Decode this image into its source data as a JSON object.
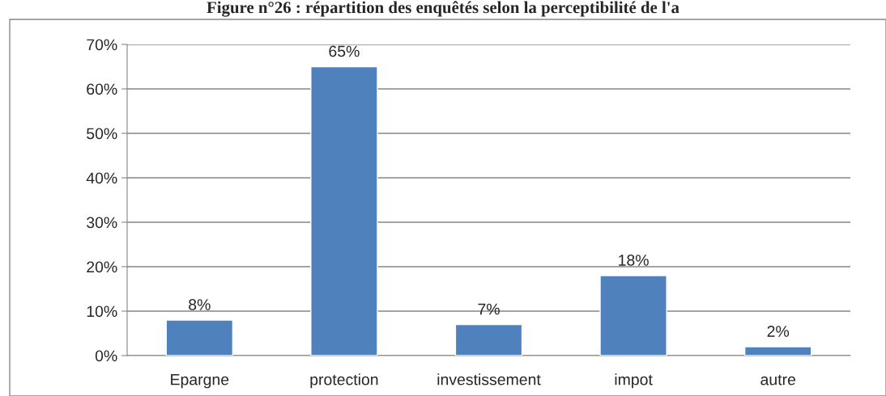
{
  "chart_data": {
    "type": "bar",
    "title": "Figure n°26 : répartition des enquêtés selon la perceptibilité de l'a",
    "categories": [
      "Epargne",
      "protection",
      "investissement",
      "impot",
      "autre"
    ],
    "values": [
      8,
      65,
      7,
      18,
      2
    ],
    "color": "#4f81bd",
    "value_labels": [
      "8%",
      "65%",
      "7%",
      "18%",
      "2%"
    ],
    "ylim": [
      0,
      70
    ],
    "yticks": [
      {
        "value": 0,
        "label": "0%"
      },
      {
        "value": 10,
        "label": "10%"
      },
      {
        "value": 20,
        "label": "20%"
      },
      {
        "value": 30,
        "label": "30%"
      },
      {
        "value": 40,
        "label": "40%"
      },
      {
        "value": 50,
        "label": "50%"
      },
      {
        "value": 60,
        "label": "60%"
      },
      {
        "value": 70,
        "label": "70%"
      }
    ],
    "grid": "y",
    "legend": false
  }
}
